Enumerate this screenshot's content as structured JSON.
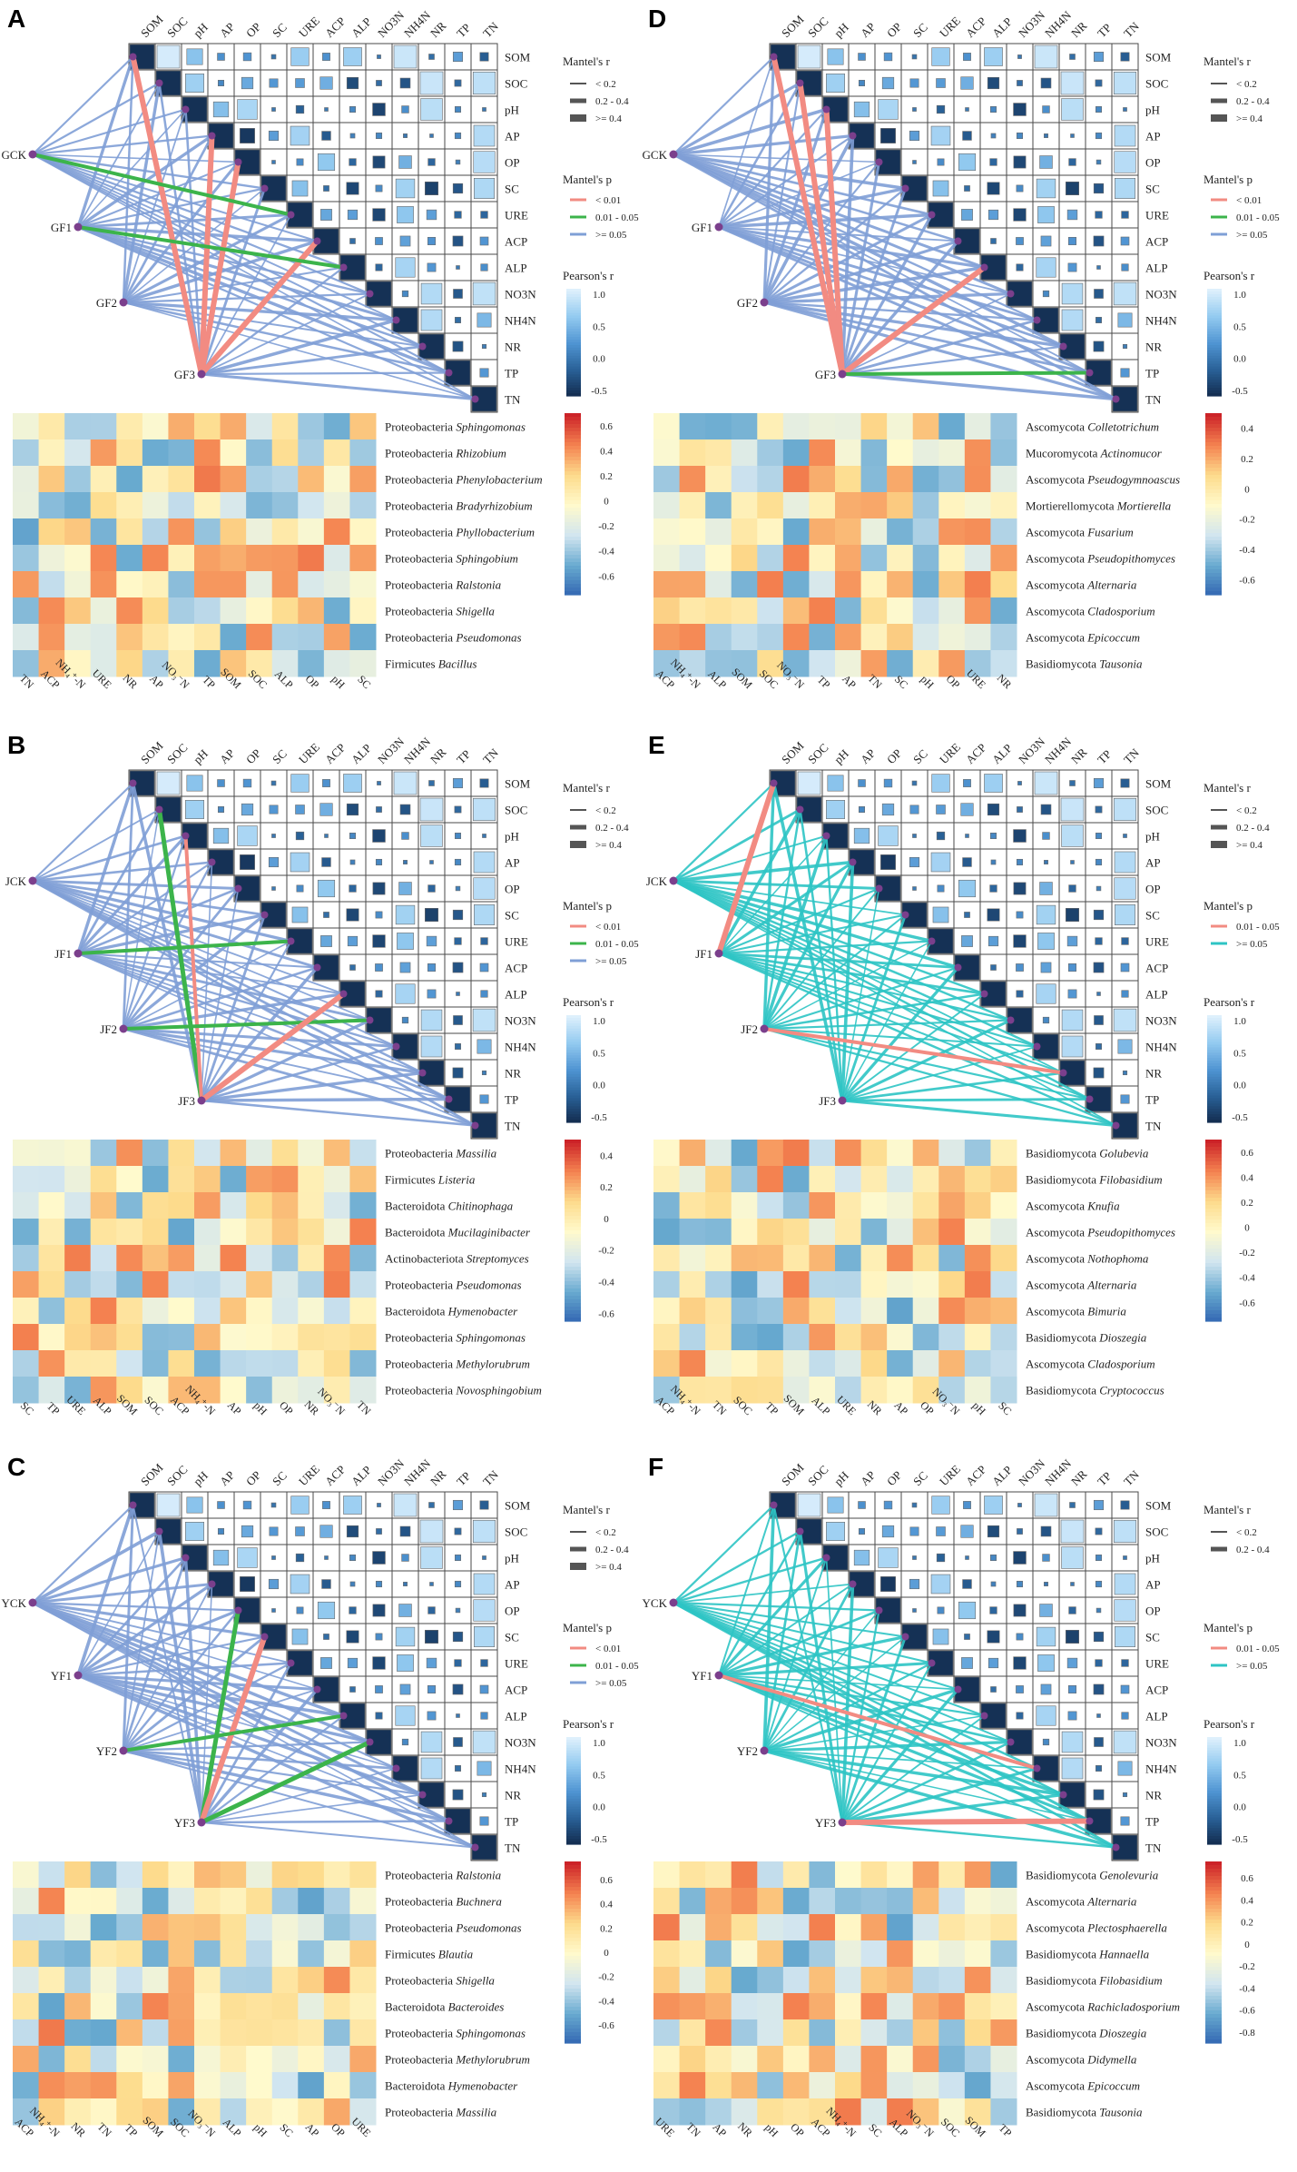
{
  "figure": {
    "matrix_labels": [
      "SOM",
      "SOC",
      "pH",
      "AP",
      "OP",
      "SC",
      "URE",
      "ACP",
      "ALP",
      "NO3N",
      "NH4N",
      "NR",
      "TP",
      "TN"
    ],
    "legend_titles": {
      "mantel_r": "Mantel's r",
      "mantel_p": "Mantel's p",
      "pearson": "Pearson's r"
    },
    "mantel_r_bins": [
      "< 0.2",
      "0.2 - 0.4",
      ">= 0.4"
    ],
    "mantel_p_bins": [
      "< 0.01",
      "0.01 - 0.05",
      ">= 0.05"
    ],
    "pearson_ticks": [
      "1.0",
      "0.5",
      "0.0",
      "-0.5"
    ],
    "colors": {
      "red": "#f28b82",
      "green": "#3cb44b",
      "blue": "#7f9fd6",
      "teal": "#2ec4c4",
      "node": "#7b3f8c"
    }
  },
  "chart_data": [
    {
      "panel": "A",
      "type": "heatmap",
      "mantel_nodes": [
        "GCK",
        "GF1",
        "GF2",
        "GF3"
      ],
      "mantel_p_bins": [
        "< 0.01",
        "0.01 - 0.05",
        ">= 0.05"
      ],
      "mantel_r_bins": [
        "< 0.2",
        "0.2 - 0.4",
        ">= 0.4"
      ],
      "heat_rows": [
        [
          "Proteobacteria",
          "Sphingomonas"
        ],
        [
          "Proteobacteria",
          "Rhizobium"
        ],
        [
          "Proteobacteria",
          "Phenylobacterium"
        ],
        [
          "Proteobacteria",
          "Bradyrhizobium"
        ],
        [
          "Proteobacteria",
          "Phyllobacterium"
        ],
        [
          "Proteobacteria",
          "Sphingobium"
        ],
        [
          "Proteobacteria",
          "Ralstonia"
        ],
        [
          "Proteobacteria",
          "Shigella"
        ],
        [
          "Proteobacteria",
          "Pseudomonas"
        ],
        [
          "Firmicutes",
          "Bacillus"
        ]
      ],
      "heat_cols": [
        "TN",
        "ACP",
        "NH₄⁺-N",
        "URE",
        "NR",
        "AP",
        "NO₃⁻N",
        "TP",
        "SOM",
        "SOC",
        "ALP",
        "OP",
        "pH",
        "SC"
      ],
      "heat_ticks": [
        "0.6",
        "0.4",
        "0.2",
        "0",
        "-0.2",
        "-0.4",
        "-0.6"
      ],
      "heat_range": [
        -0.75,
        0.7
      ]
    },
    {
      "panel": "B",
      "type": "heatmap",
      "mantel_nodes": [
        "JCK",
        "JF1",
        "JF2",
        "JF3"
      ],
      "mantel_p_bins": [
        "< 0.01",
        "0.01 - 0.05",
        ">= 0.05"
      ],
      "mantel_r_bins": [
        "< 0.2",
        "0.2 - 0.4",
        ">= 0.4"
      ],
      "heat_rows": [
        [
          "Proteobacteria",
          "Massilia"
        ],
        [
          "Firmicutes",
          "Listeria"
        ],
        [
          "Bacteroidota",
          "Chitinophaga"
        ],
        [
          "Bacteroidota",
          "Mucilaginibacter"
        ],
        [
          "Actinobacteriota",
          "Streptomyces"
        ],
        [
          "Proteobacteria",
          "Pseudomonas"
        ],
        [
          "Bacteroidota",
          "Hymenobacter"
        ],
        [
          "Proteobacteria",
          "Sphingomonas"
        ],
        [
          "Proteobacteria",
          "Methylorubrum"
        ],
        [
          "Proteobacteria",
          "Novosphingobium"
        ]
      ],
      "heat_cols": [
        "SC",
        "TP",
        "URE",
        "ALP",
        "SOM",
        "SOC",
        "ACP",
        "NH₄⁺-N",
        "AP",
        "pH",
        "OP",
        "NR",
        "NO₃⁻N",
        "TN"
      ],
      "heat_ticks": [
        "0.4",
        "0.2",
        "0",
        "-0.2",
        "-0.4",
        "-0.6"
      ],
      "heat_range": [
        -0.65,
        0.5
      ]
    },
    {
      "panel": "C",
      "type": "heatmap",
      "mantel_nodes": [
        "YCK",
        "YF1",
        "YF2",
        "YF3"
      ],
      "mantel_p_bins": [
        "< 0.01",
        "0.01 - 0.05",
        ">= 0.05"
      ],
      "mantel_r_bins": [
        "< 0.2",
        "0.2 - 0.4",
        ">= 0.4"
      ],
      "heat_rows": [
        [
          "Proteobacteria",
          "Ralstonia"
        ],
        [
          "Proteobacteria",
          "Buchnera"
        ],
        [
          "Proteobacteria",
          "Pseudomonas"
        ],
        [
          "Firmicutes",
          "Blautia"
        ],
        [
          "Proteobacteria",
          "Shigella"
        ],
        [
          "Bacteroidota",
          "Bacteroides"
        ],
        [
          "Proteobacteria",
          "Sphingomonas"
        ],
        [
          "Proteobacteria",
          "Methylorubrum"
        ],
        [
          "Bacteroidota",
          "Hymenobacter"
        ],
        [
          "Proteobacteria",
          "Massilia"
        ]
      ],
      "heat_cols": [
        "ACP",
        "NH₄⁺-N",
        "NR",
        "TN",
        "TP",
        "SOM",
        "SOC",
        "NO₃⁻N",
        "ALP",
        "pH",
        "SC",
        "AP",
        "OP",
        "URE"
      ],
      "heat_ticks": [
        "0.6",
        "0.4",
        "0.2",
        "0",
        "-0.2",
        "-0.4",
        "-0.6"
      ],
      "heat_range": [
        -0.75,
        0.75
      ]
    },
    {
      "panel": "D",
      "type": "heatmap",
      "mantel_nodes": [
        "GCK",
        "GF1",
        "GF2",
        "GF3"
      ],
      "mantel_p_bins": [
        "< 0.01",
        "0.01 - 0.05",
        ">= 0.05"
      ],
      "mantel_r_bins": [
        "< 0.2",
        "0.2 - 0.4",
        ">= 0.4"
      ],
      "heat_rows": [
        [
          "Ascomycota",
          "Colletotrichum"
        ],
        [
          "Mucoromycota",
          "Actinomucor"
        ],
        [
          "Ascomycota",
          "Pseudogymnoascus"
        ],
        [
          "Mortierellomycota",
          "Mortierella"
        ],
        [
          "Ascomycota",
          "Fusarium"
        ],
        [
          "Ascomycota",
          "Pseudopithomyces"
        ],
        [
          "Ascomycota",
          "Alternaria"
        ],
        [
          "Ascomycota",
          "Cladosporium"
        ],
        [
          "Ascomycota",
          "Epicoccum"
        ],
        [
          "Basidiomycota",
          "Tausonia"
        ]
      ],
      "heat_cols": [
        "ACP",
        "NH₄⁺-N",
        "ALP",
        "SOM",
        "SOC",
        "NO₃⁻N",
        "TP",
        "AP",
        "TN",
        "SC",
        "pH",
        "OP",
        "URE",
        "NR"
      ],
      "heat_ticks": [
        "0.4",
        "0.2",
        "0",
        "-0.2",
        "-0.4",
        "-0.6"
      ],
      "heat_range": [
        -0.7,
        0.5
      ]
    },
    {
      "panel": "E",
      "type": "heatmap",
      "mantel_nodes": [
        "JCK",
        "JF1",
        "JF2",
        "JF3"
      ],
      "mantel_p_bins": [
        "0.01 - 0.05",
        ">= 0.05"
      ],
      "mantel_r_bins": [
        "< 0.2",
        "0.2 - 0.4",
        ">= 0.4"
      ],
      "heat_rows": [
        [
          "Basidiomycota",
          "Golubevia"
        ],
        [
          "Basidiomycota",
          "Filobasidium"
        ],
        [
          "Ascomycota",
          "Knufia"
        ],
        [
          "Ascomycota",
          "Pseudopithomyces"
        ],
        [
          "Ascomycota",
          "Nothophoma"
        ],
        [
          "Ascomycota",
          "Alternaria"
        ],
        [
          "Ascomycota",
          "Bimuria"
        ],
        [
          "Basidiomycota",
          "Dioszegia"
        ],
        [
          "Ascomycota",
          "Cladosporium"
        ],
        [
          "Basidiomycota",
          "Cryptococcus"
        ]
      ],
      "heat_cols": [
        "ACP",
        "NH₄⁺-N",
        "TN",
        "SOC",
        "TP",
        "SOM",
        "ALP",
        "URE",
        "NR",
        "AP",
        "OP",
        "NO₃⁻N",
        "pH",
        "SC"
      ],
      "heat_ticks": [
        "0.6",
        "0.4",
        "0.2",
        "0",
        "-0.2",
        "-0.4",
        "-0.6"
      ],
      "heat_range": [
        -0.75,
        0.7
      ]
    },
    {
      "panel": "F",
      "type": "heatmap",
      "mantel_nodes": [
        "YCK",
        "YF1",
        "YF2",
        "YF3"
      ],
      "mantel_p_bins": [
        "0.01 - 0.05",
        ">= 0.05"
      ],
      "mantel_r_bins": [
        "< 0.2",
        "0.2 - 0.4"
      ],
      "heat_rows": [
        [
          "Basidiomycota",
          "Genolevuria"
        ],
        [
          "Ascomycota",
          "Alternaria"
        ],
        [
          "Ascomycota",
          "Plectosphaerella"
        ],
        [
          "Basidiomycota",
          "Hannaella"
        ],
        [
          "Basidiomycota",
          "Filobasidium"
        ],
        [
          "Ascomycota",
          "Rachicladosporium"
        ],
        [
          "Basidiomycota",
          "Dioszegia"
        ],
        [
          "Ascomycota",
          "Didymella"
        ],
        [
          "Ascomycota",
          "Epicoccum"
        ],
        [
          "Basidiomycota",
          "Tausonia"
        ]
      ],
      "heat_cols": [
        "URE",
        "TN",
        "AP",
        "NR",
        "pH",
        "OP",
        "ACP",
        "NH₄⁺-N",
        "SC",
        "ALP",
        "NO₃⁻N",
        "SOC",
        "SOM",
        "TP"
      ],
      "heat_ticks": [
        "0.6",
        "0.4",
        "0.2",
        "0",
        "-0.2",
        "-0.4",
        "-0.6",
        "-0.8"
      ],
      "heat_range": [
        -0.9,
        0.75
      ]
    }
  ]
}
